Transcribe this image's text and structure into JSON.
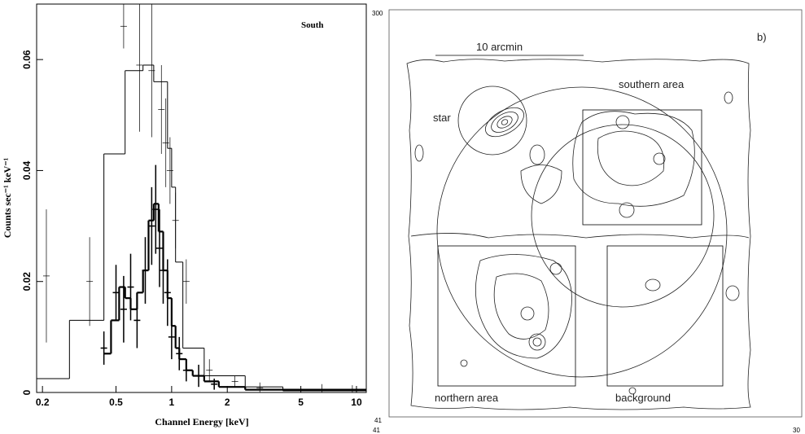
{
  "chart_data": {
    "type": "step",
    "annotation": "South",
    "x_label": "Channel Energy [keV]",
    "y_label": "Counts sec⁻¹ keV⁻¹",
    "xscale": "log",
    "xlim": [
      0.186,
      11.3
    ],
    "xticks": [
      0.2,
      0.5,
      1,
      2,
      5,
      10
    ],
    "ylim": [
      0,
      0.07
    ],
    "yticks": [
      0,
      0.02,
      0.04,
      0.06
    ],
    "series": [
      {
        "color": "#000000",
        "width": 1,
        "bins": [
          0.186,
          0.28,
          0.43,
          0.56,
          0.7,
          0.8,
          0.95,
          1.0,
          1.05,
          1.15,
          1.5,
          2.5,
          4,
          11.3
        ],
        "values": [
          0.0025,
          0.013,
          0.043,
          0.058,
          0.059,
          0.056,
          0.044,
          0.037,
          0.0235,
          0.008,
          0.003,
          0.001,
          0.0003
        ],
        "points": {
          "x": [
            0.21,
            0.36,
            0.55,
            0.67,
            0.78,
            0.88,
            0.93,
            0.98,
            1.05,
            1.2,
            1.6,
            2.2,
            3.0,
            6.5,
            9.5
          ],
          "values": [
            0.021,
            0.02,
            0.066,
            0.059,
            0.058,
            0.051,
            0.045,
            0.04,
            0.031,
            0.02,
            0.004,
            0.002,
            0.0008,
            0.0005,
            0.0003
          ],
          "errors": [
            0.012,
            0.008,
            0.004,
            0.012,
            0.012,
            0.008,
            0.008,
            0.006,
            0.005,
            0.004,
            0.002,
            0.001,
            0.001,
            0.001,
            0.001
          ]
        }
      },
      {
        "color": "#000000",
        "width": 2.2,
        "bins": [
          0.43,
          0.47,
          0.52,
          0.56,
          0.6,
          0.65,
          0.7,
          0.75,
          0.8,
          0.85,
          0.9,
          0.95,
          1.0,
          1.05,
          1.1,
          1.2,
          1.3,
          1.5,
          1.8,
          2.5,
          11.3
        ],
        "values": [
          0.007,
          0.013,
          0.019,
          0.017,
          0.015,
          0.018,
          0.022,
          0.031,
          0.034,
          0.029,
          0.022,
          0.017,
          0.012,
          0.008,
          0.006,
          0.004,
          0.003,
          0.002,
          0.001,
          0.0005
        ],
        "points": {
          "x": [
            0.43,
            0.5,
            0.55,
            0.6,
            0.65,
            0.72,
            0.78,
            0.82,
            0.86,
            0.9,
            0.95,
            1.0,
            1.1,
            1.2,
            1.4,
            1.7
          ],
          "values": [
            0.008,
            0.018,
            0.015,
            0.019,
            0.013,
            0.022,
            0.03,
            0.033,
            0.026,
            0.022,
            0.018,
            0.01,
            0.007,
            0.004,
            0.003,
            0.0015
          ],
          "errors": [
            0.003,
            0.005,
            0.006,
            0.006,
            0.005,
            0.006,
            0.007,
            0.008,
            0.007,
            0.006,
            0.006,
            0.004,
            0.003,
            0.002,
            0.002,
            0.001
          ]
        }
      }
    ]
  },
  "map": {
    "panel_label": "b)",
    "scale_label": "10 arcmin",
    "regions": [
      "southern area",
      "star",
      "northern area",
      "background"
    ],
    "corner_labels": [
      "300",
      "41",
      "41",
      "30"
    ]
  }
}
